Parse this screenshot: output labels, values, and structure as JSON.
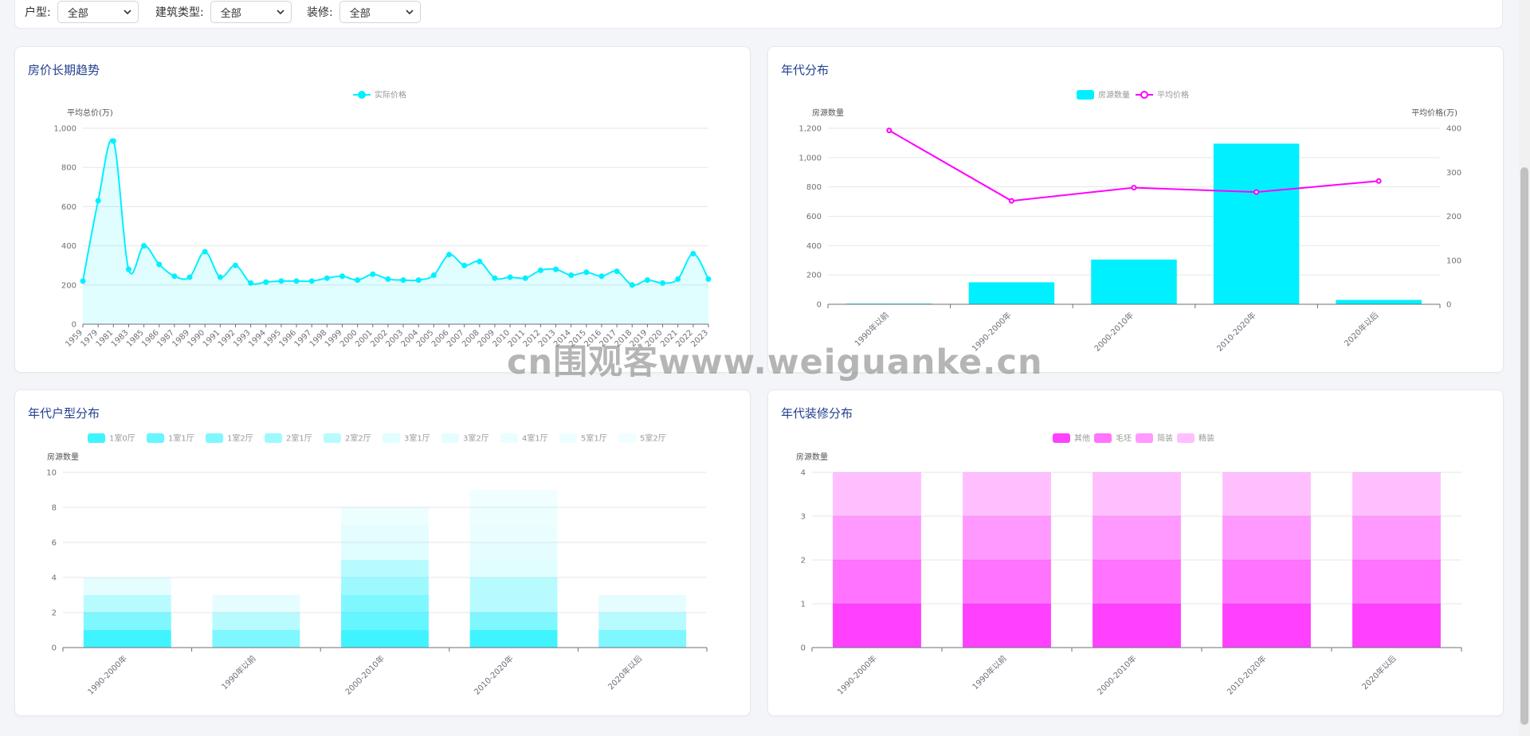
{
  "filters": [
    {
      "label": "户型:",
      "value": "全部"
    },
    {
      "label": "建筑类型:",
      "value": "全部"
    },
    {
      "label": "装修:",
      "value": "全部"
    }
  ],
  "watermark": "cn围观客www.weiguanke.cn",
  "colors": {
    "cyan": "#00f0ff",
    "magenta": "#ff00ff",
    "title": "#23408e",
    "axis": "#6e7079",
    "grid": "#e6e6e6"
  },
  "chart_data": [
    {
      "id": "price-trend",
      "title": "房价长期趋势",
      "type": "area",
      "legend": [
        "实际价格"
      ],
      "ylabel": "平均总价(万)",
      "ylim": [
        0,
        1000
      ],
      "yticks": [
        0,
        200,
        400,
        600,
        800,
        1000
      ],
      "x": [
        "1959",
        "1979",
        "1981",
        "1983",
        "1985",
        "1986",
        "1987",
        "1989",
        "1990",
        "1991",
        "1992",
        "1993",
        "1994",
        "1995",
        "1996",
        "1997",
        "1998",
        "1999",
        "2000",
        "2001",
        "2002",
        "2003",
        "2004",
        "2005",
        "2006",
        "2007",
        "2008",
        "2009",
        "2010",
        "2011",
        "2012",
        "2013",
        "2014",
        "2015",
        "2016",
        "2017",
        "2018",
        "2019",
        "2020",
        "2021",
        "2022",
        "2023"
      ],
      "series": [
        {
          "name": "实际价格",
          "values": [
            220,
            630,
            935,
            280,
            400,
            305,
            245,
            240,
            370,
            240,
            300,
            210,
            215,
            220,
            220,
            220,
            235,
            245,
            225,
            255,
            230,
            225,
            225,
            250,
            355,
            300,
            320,
            235,
            240,
            235,
            275,
            280,
            250,
            265,
            245,
            270,
            200,
            225,
            210,
            230,
            360,
            230
          ]
        }
      ]
    },
    {
      "id": "decade-dist",
      "title": "年代分布",
      "type": "bar",
      "legend": [
        "房源数量",
        "平均价格"
      ],
      "ylabel": "房源数量",
      "y2label": "平均价格(万)",
      "ylim": [
        0,
        1200
      ],
      "yticks": [
        0,
        200,
        400,
        600,
        800,
        1000,
        1200
      ],
      "y2lim": [
        0,
        400
      ],
      "y2ticks": [
        0,
        100,
        200,
        300,
        400
      ],
      "categories": [
        "1990年以前",
        "1990-2000年",
        "2000-2010年",
        "2010-2020年",
        "2020年以后"
      ],
      "series": [
        {
          "name": "房源数量",
          "type": "bar",
          "values": [
            5,
            150,
            305,
            1095,
            30
          ]
        },
        {
          "name": "平均价格",
          "type": "line",
          "axis": "right",
          "values": [
            395,
            235,
            265,
            255,
            280
          ]
        }
      ]
    },
    {
      "id": "decade-layout",
      "title": "年代户型分布",
      "type": "bar",
      "stacked": true,
      "legend": [
        "1室0厅",
        "1室1厅",
        "1室2厅",
        "2室1厅",
        "2室2厅",
        "3室1厅",
        "3室2厅",
        "4室1厅",
        "5室1厅",
        "5室2厅"
      ],
      "ylabel": "房源数量",
      "ylim": [
        0,
        10
      ],
      "yticks": [
        0,
        2,
        4,
        6,
        8,
        10
      ],
      "categories": [
        "1990-2000年",
        "1990年以前",
        "2000-2010年",
        "2010-2020年",
        "2020年以后"
      ],
      "series": [
        {
          "name": "1室0厅",
          "values": [
            1,
            0,
            1,
            1,
            0
          ]
        },
        {
          "name": "1室1厅",
          "values": [
            0,
            0,
            1,
            0,
            0
          ]
        },
        {
          "name": "1室2厅",
          "values": [
            1,
            1,
            1,
            1,
            1
          ]
        },
        {
          "name": "2室1厅",
          "values": [
            0,
            0,
            1,
            0,
            0
          ]
        },
        {
          "name": "2室2厅",
          "values": [
            1,
            1,
            1,
            2,
            1
          ]
        },
        {
          "name": "3室1厅",
          "values": [
            0,
            0,
            1,
            1,
            0
          ]
        },
        {
          "name": "3室2厅",
          "values": [
            1,
            1,
            1,
            1,
            1
          ]
        },
        {
          "name": "4室1厅",
          "values": [
            0,
            0,
            0,
            1,
            0
          ]
        },
        {
          "name": "5室1厅",
          "values": [
            0,
            0,
            1,
            1,
            0
          ]
        },
        {
          "name": "5室2厅",
          "values": [
            0,
            0,
            0,
            1,
            0
          ]
        }
      ]
    },
    {
      "id": "decade-decoration",
      "title": "年代装修分布",
      "type": "bar",
      "stacked": true,
      "legend": [
        "其他",
        "毛坯",
        "简装",
        "精装"
      ],
      "ylabel": "房源数量",
      "ylim": [
        0,
        4
      ],
      "yticks": [
        0,
        1,
        2,
        3,
        4
      ],
      "categories": [
        "1990-2000年",
        "1990年以前",
        "2000-2010年",
        "2010-2020年",
        "2020年以后"
      ],
      "series": [
        {
          "name": "其他",
          "values": [
            1,
            1,
            1,
            1,
            1
          ]
        },
        {
          "name": "毛坯",
          "values": [
            1,
            1,
            1,
            1,
            1
          ]
        },
        {
          "name": "简装",
          "values": [
            1,
            1,
            1,
            1,
            1
          ]
        },
        {
          "name": "精装",
          "values": [
            1,
            1,
            1,
            1,
            1
          ]
        }
      ]
    }
  ]
}
